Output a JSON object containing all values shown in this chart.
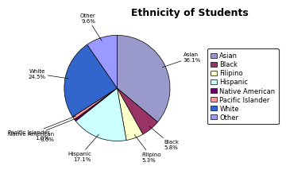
{
  "title": "Ethnicity of Students",
  "labels": [
    "Asian",
    "Black",
    "Filipino",
    "Hispanic",
    "Native American",
    "Pacific Islander",
    "White",
    "Other"
  ],
  "legend_labels": [
    "Asian",
    "Black",
    "Filipino",
    "Hispanic",
    "Native American",
    "Pacific Islander",
    "White",
    "Other"
  ],
  "values": [
    36.1,
    5.8,
    5.3,
    17.1,
    0.6,
    1.0,
    24.5,
    9.6
  ],
  "colors": [
    "#9999cc",
    "#993366",
    "#ffffcc",
    "#ccffff",
    "#660066",
    "#ff9999",
    "#3366cc",
    "#9999ff"
  ],
  "startangle": 90,
  "title_fontsize": 9,
  "label_fontsize": 5,
  "legend_fontsize": 6
}
